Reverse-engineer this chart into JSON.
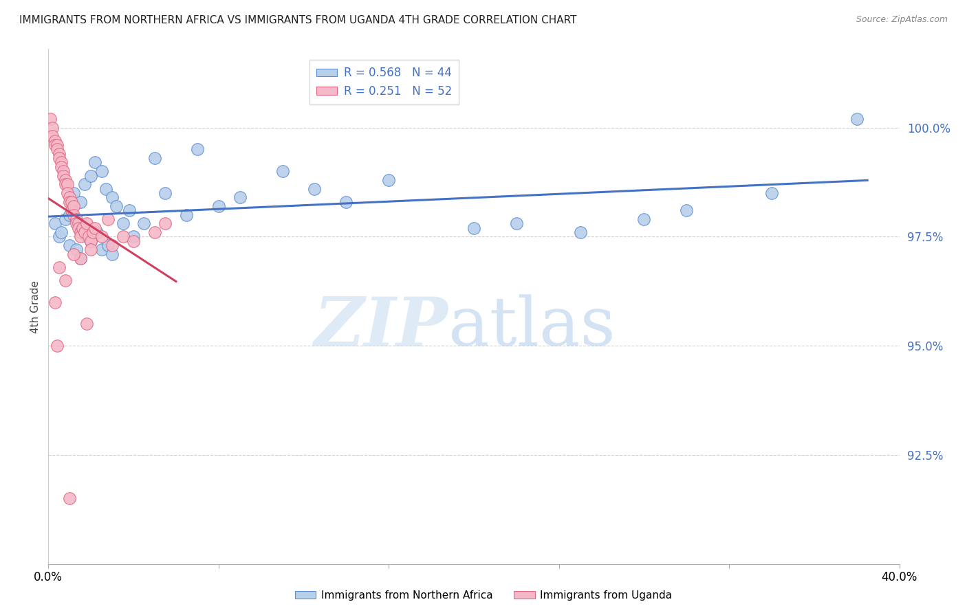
{
  "title": "IMMIGRANTS FROM NORTHERN AFRICA VS IMMIGRANTS FROM UGANDA 4TH GRADE CORRELATION CHART",
  "source": "Source: ZipAtlas.com",
  "ylabel": "4th Grade",
  "xlim": [
    0.0,
    40.0
  ],
  "ylim": [
    90.0,
    101.8
  ],
  "yticks": [
    92.5,
    95.0,
    97.5,
    100.0
  ],
  "ytick_labels": [
    "92.5%",
    "95.0%",
    "97.5%",
    "100.0%"
  ],
  "legend_r_blue": "R = 0.568",
  "legend_n_blue": "N = 44",
  "legend_r_pink": "R = 0.251",
  "legend_n_pink": "N = 52",
  "blue_color": "#b8d0ea",
  "pink_color": "#f5b8c8",
  "blue_edge_color": "#5b8fd4",
  "pink_edge_color": "#e06880",
  "blue_line_color": "#4472c4",
  "pink_line_color": "#d04060",
  "tick_color": "#4472c4",
  "blue_scatter_x": [
    0.3,
    0.5,
    0.6,
    0.8,
    1.0,
    1.0,
    1.2,
    1.3,
    1.5,
    1.5,
    1.7,
    1.8,
    2.0,
    2.0,
    2.2,
    2.3,
    2.5,
    2.5,
    2.7,
    2.8,
    3.0,
    3.0,
    3.2,
    3.5,
    3.8,
    4.0,
    4.5,
    5.0,
    5.5,
    6.5,
    7.0,
    8.0,
    9.0,
    11.0,
    12.5,
    14.0,
    16.0,
    20.0,
    22.0,
    25.0,
    28.0,
    30.0,
    34.0,
    38.0
  ],
  "blue_scatter_y": [
    97.8,
    97.5,
    97.6,
    97.9,
    98.0,
    97.3,
    98.5,
    97.2,
    98.3,
    97.0,
    98.7,
    97.5,
    98.9,
    97.4,
    99.2,
    97.6,
    99.0,
    97.2,
    98.6,
    97.3,
    98.4,
    97.1,
    98.2,
    97.8,
    98.1,
    97.5,
    97.8,
    99.3,
    98.5,
    98.0,
    99.5,
    98.2,
    98.4,
    99.0,
    98.6,
    98.3,
    98.8,
    97.7,
    97.8,
    97.6,
    97.9,
    98.1,
    98.5,
    100.2
  ],
  "pink_scatter_x": [
    0.1,
    0.2,
    0.2,
    0.3,
    0.3,
    0.4,
    0.4,
    0.5,
    0.5,
    0.6,
    0.6,
    0.7,
    0.7,
    0.8,
    0.8,
    0.9,
    0.9,
    1.0,
    1.0,
    1.1,
    1.1,
    1.2,
    1.2,
    1.3,
    1.3,
    1.4,
    1.4,
    1.5,
    1.5,
    1.6,
    1.7,
    1.8,
    1.9,
    2.0,
    2.1,
    2.2,
    2.5,
    2.8,
    3.0,
    3.5,
    4.0,
    5.0,
    5.5,
    0.5,
    1.5,
    2.0,
    0.8,
    1.2,
    0.3,
    1.8,
    0.4,
    1.0
  ],
  "pink_scatter_y": [
    100.2,
    100.0,
    99.8,
    99.7,
    99.6,
    99.6,
    99.5,
    99.4,
    99.3,
    99.2,
    99.1,
    99.0,
    98.9,
    98.8,
    98.7,
    98.7,
    98.5,
    98.4,
    98.3,
    98.3,
    98.1,
    98.2,
    98.0,
    97.9,
    97.8,
    97.8,
    97.7,
    97.6,
    97.5,
    97.7,
    97.6,
    97.8,
    97.5,
    97.4,
    97.6,
    97.7,
    97.5,
    97.9,
    97.3,
    97.5,
    97.4,
    97.6,
    97.8,
    96.8,
    97.0,
    97.2,
    96.5,
    97.1,
    96.0,
    95.5,
    95.0,
    91.5
  ]
}
